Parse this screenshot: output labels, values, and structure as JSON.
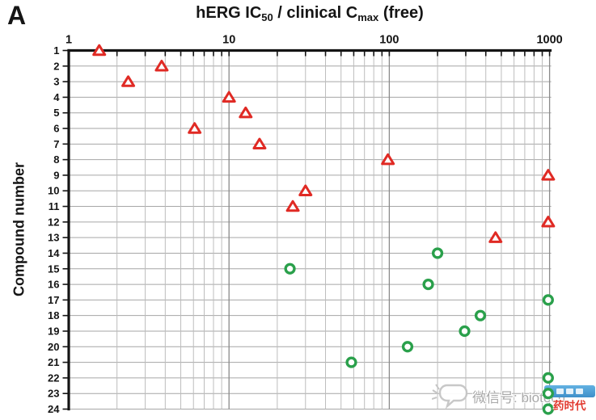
{
  "panel_label": "A",
  "chart_data": {
    "type": "scatter",
    "title": "hERG IC50 / clinical Cmax (free)",
    "title_segments": [
      {
        "text": "hERG IC"
      },
      {
        "text": "50",
        "sub": true
      },
      {
        "text": " / clinical C"
      },
      {
        "text": "max",
        "sub": true
      },
      {
        "text": " (free)"
      }
    ],
    "xlabel": "hERG IC50 / clinical Cmax (free)",
    "ylabel": "Compound number",
    "x_scale": "log",
    "xlim": [
      1,
      1000
    ],
    "x_ticks": [
      1,
      10,
      100,
      1000
    ],
    "x_tick_labels": [
      "1",
      "10",
      "100",
      "1000"
    ],
    "y_categories": [
      1,
      2,
      3,
      4,
      5,
      6,
      7,
      8,
      9,
      10,
      11,
      12,
      13,
      14,
      15,
      16,
      17,
      18,
      19,
      20,
      21,
      22,
      23,
      24
    ],
    "grid": true,
    "legend": "none",
    "series": [
      {
        "name": "red-open-triangles",
        "marker": "open-triangle",
        "color": "#e02a24",
        "points": [
          {
            "compound": 1,
            "ratio": 1.55
          },
          {
            "compound": 2,
            "ratio": 3.8
          },
          {
            "compound": 3,
            "ratio": 2.35
          },
          {
            "compound": 4,
            "ratio": 10
          },
          {
            "compound": 5,
            "ratio": 12.7
          },
          {
            "compound": 6,
            "ratio": 6.1
          },
          {
            "compound": 7,
            "ratio": 15.5
          },
          {
            "compound": 8,
            "ratio": 98
          },
          {
            "compound": 9,
            "ratio": 980
          },
          {
            "compound": 10,
            "ratio": 30
          },
          {
            "compound": 11,
            "ratio": 25
          },
          {
            "compound": 12,
            "ratio": 980
          },
          {
            "compound": 13,
            "ratio": 460
          }
        ]
      },
      {
        "name": "green-open-circles",
        "marker": "open-circle",
        "color": "#2aa04b",
        "points": [
          {
            "compound": 14,
            "ratio": 200
          },
          {
            "compound": 15,
            "ratio": 24
          },
          {
            "compound": 16,
            "ratio": 175
          },
          {
            "compound": 17,
            "ratio": 980
          },
          {
            "compound": 18,
            "ratio": 370
          },
          {
            "compound": 19,
            "ratio": 295
          },
          {
            "compound": 20,
            "ratio": 130
          },
          {
            "compound": 21,
            "ratio": 58
          },
          {
            "compound": 22,
            "ratio": 980
          },
          {
            "compound": 23,
            "ratio": 980
          },
          {
            "compound": 24,
            "ratio": 980
          }
        ]
      }
    ]
  },
  "colors": {
    "axis": "#141414",
    "grid_horizontal": "#a6a6a6",
    "grid_minor": "#bdbdbd",
    "grid_major": "#8a8a8a",
    "triangle": "#e02a24",
    "circle": "#2aa04b",
    "watermark_badge_blue": "#4aa0d6",
    "watermark_red": "#e23b31"
  },
  "watermark": {
    "wechat_label": "微信号: biotech",
    "logo_text": "药时代"
  }
}
